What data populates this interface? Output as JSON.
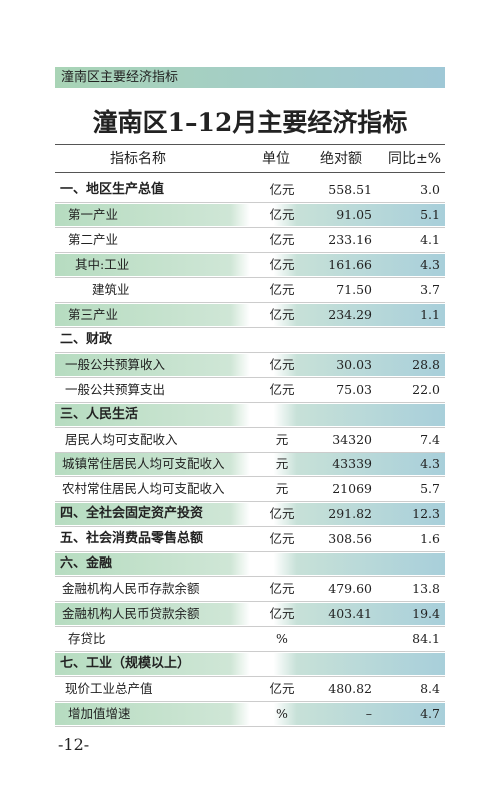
{
  "header": {
    "banner": "潼南区主要经济指标"
  },
  "title": "潼南区1–12月主要经济指标",
  "table": {
    "columns": [
      "指标名称",
      "单位",
      "绝对额",
      "同比±%"
    ],
    "rows": [
      [
        "一、地区生产总值",
        "亿元",
        "558.51",
        "3.0"
      ],
      [
        "第一产业",
        "亿元",
        "91.05",
        "5.1"
      ],
      [
        "第二产业",
        "亿元",
        "233.16",
        "4.1"
      ],
      [
        "其中:工业",
        "亿元",
        "161.66",
        "4.3"
      ],
      [
        "建筑业",
        "亿元",
        "71.50",
        "3.7"
      ],
      [
        "第三产业",
        "亿元",
        "234.29",
        "1.1"
      ],
      [
        "二、财政"
      ],
      [
        "一般公共预算收入",
        "亿元",
        "30.03",
        "28.8"
      ],
      [
        "一般公共预算支出",
        "亿元",
        "75.03",
        "22.0"
      ],
      [
        "三、人民生活"
      ],
      [
        "居民人均可支配收入",
        "元",
        "34320",
        "7.4"
      ],
      [
        "城镇常住居民人均可支配收入",
        "元",
        "43339",
        "4.3"
      ],
      [
        "农村常住居民人均可支配收入",
        "元",
        "21069",
        "5.7"
      ],
      [
        "四、全社会固定资产投资",
        "亿元",
        "291.82",
        "12.3"
      ],
      [
        "五、社会消费品零售总额",
        "亿元",
        "308.56",
        "1.6"
      ],
      [
        "六、金融"
      ],
      [
        "金融机构人民币存款余额",
        "亿元",
        "479.60",
        "13.8"
      ],
      [
        "金融机构人民币贷款余额",
        "亿元",
        "403.41",
        "19.4"
      ],
      [
        "存贷比",
        "%",
        "",
        "84.1"
      ],
      [
        "七、工业（规模以上）"
      ],
      [
        "现价工业总产值",
        "亿元",
        "480.82",
        "8.4"
      ],
      [
        "增加值增速",
        "%",
        "–",
        "4.7"
      ]
    ]
  },
  "page_number": "-12-"
}
